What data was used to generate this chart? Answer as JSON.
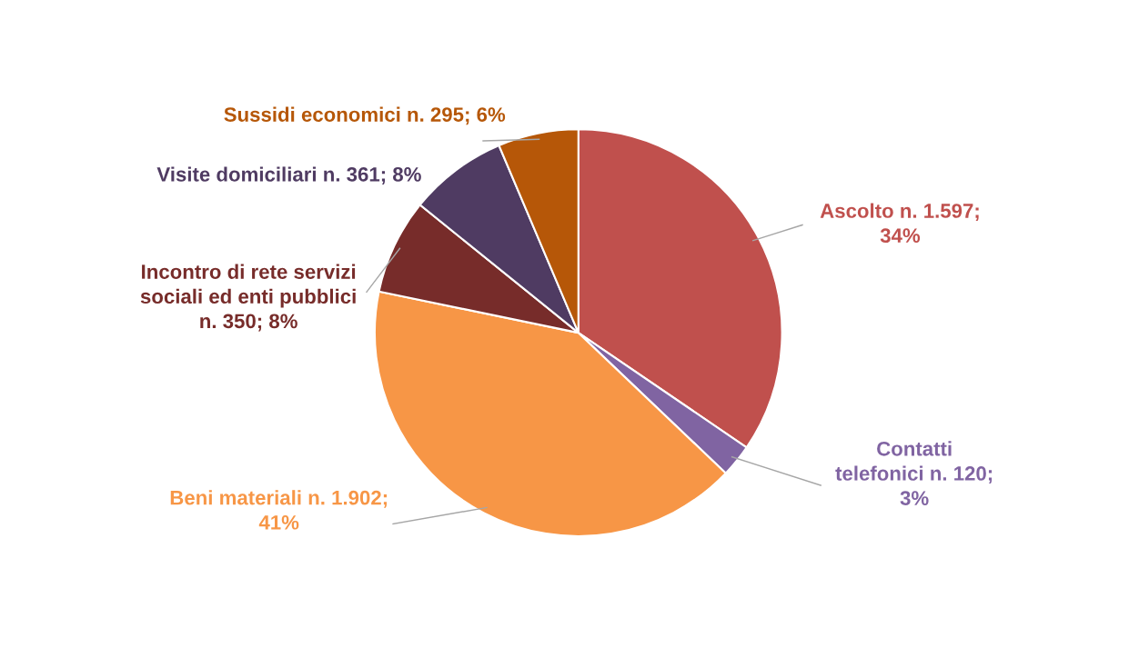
{
  "chart_data": {
    "type": "pie",
    "categories": [
      "Ascolto n. 1.597;\n34%",
      "Contatti\ntelefonici n. 120;\n3%",
      "Beni materiali n. 1.902;\n41%",
      "Incontro di rete servizi\nsociali ed enti pubblici\nn. 350; 8%",
      "Visite domiciliari n. 361; 8%",
      "Sussidi economici n. 295; 6%"
    ],
    "values": [
      1597,
      120,
      1902,
      350,
      361,
      295
    ],
    "colors": [
      "#c0504d",
      "#8064a2",
      "#f79646",
      "#772c2a",
      "#4f3b62",
      "#b65708"
    ]
  }
}
